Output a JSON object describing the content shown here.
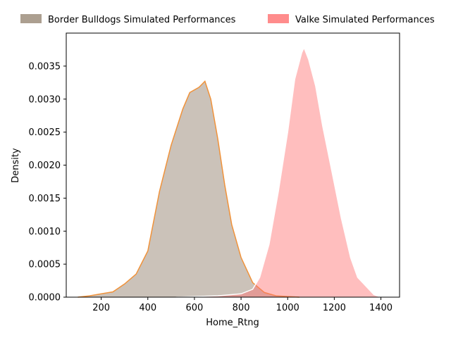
{
  "chart_data": {
    "type": "area",
    "title": "",
    "xlabel": "Home_Rtng",
    "ylabel": "Density",
    "xlim": [
      50,
      1480
    ],
    "ylim": [
      0,
      0.004
    ],
    "x_ticks": [
      200,
      400,
      600,
      800,
      1000,
      1200,
      1400
    ],
    "y_ticks": [
      0.0,
      0.0005,
      0.001,
      0.0015,
      0.002,
      0.0025,
      0.003,
      0.0035
    ],
    "y_tick_labels": [
      "0.0000",
      "0.0005",
      "0.0010",
      "0.0015",
      "0.0020",
      "0.0025",
      "0.0030",
      "0.0035"
    ],
    "grid": false,
    "legend_position": "top",
    "series": [
      {
        "name": "Border Bulldogs Simulated Performances",
        "fill_color": "#a89a8a",
        "fill_opacity": 0.6,
        "line_color": "#f0923a",
        "points": [
          [
            100,
            0.0
          ],
          [
            150,
            2e-05
          ],
          [
            200,
            5e-05
          ],
          [
            250,
            8e-05
          ],
          [
            300,
            0.0002
          ],
          [
            350,
            0.00035
          ],
          [
            400,
            0.0007
          ],
          [
            450,
            0.0016
          ],
          [
            500,
            0.0023
          ],
          [
            550,
            0.00285
          ],
          [
            580,
            0.0031
          ],
          [
            620,
            0.00318
          ],
          [
            645,
            0.00327
          ],
          [
            670,
            0.003
          ],
          [
            700,
            0.0024
          ],
          [
            730,
            0.0017
          ],
          [
            760,
            0.0011
          ],
          [
            800,
            0.0006
          ],
          [
            850,
            0.00022
          ],
          [
            900,
            7e-05
          ],
          [
            950,
            2e-05
          ],
          [
            1000,
            1e-05
          ],
          [
            1050,
            0.0
          ]
        ]
      },
      {
        "name": "Valke Simulated Performances",
        "fill_color": "#ff6f6f",
        "fill_opacity": 0.45,
        "line_color": "#ffffff",
        "points": [
          [
            520,
            0.0
          ],
          [
            600,
            1e-05
          ],
          [
            700,
            2e-05
          ],
          [
            800,
            5e-05
          ],
          [
            850,
            0.00012
          ],
          [
            880,
            0.0003
          ],
          [
            920,
            0.0008
          ],
          [
            960,
            0.0016
          ],
          [
            1000,
            0.0025
          ],
          [
            1030,
            0.0033
          ],
          [
            1060,
            0.0037
          ],
          [
            1070,
            0.00378
          ],
          [
            1090,
            0.0036
          ],
          [
            1120,
            0.0032
          ],
          [
            1150,
            0.0026
          ],
          [
            1190,
            0.0019
          ],
          [
            1230,
            0.0012
          ],
          [
            1270,
            0.0006
          ],
          [
            1300,
            0.0003
          ],
          [
            1340,
            0.00015
          ],
          [
            1370,
            4e-05
          ],
          [
            1400,
            0.0
          ]
        ]
      }
    ]
  }
}
